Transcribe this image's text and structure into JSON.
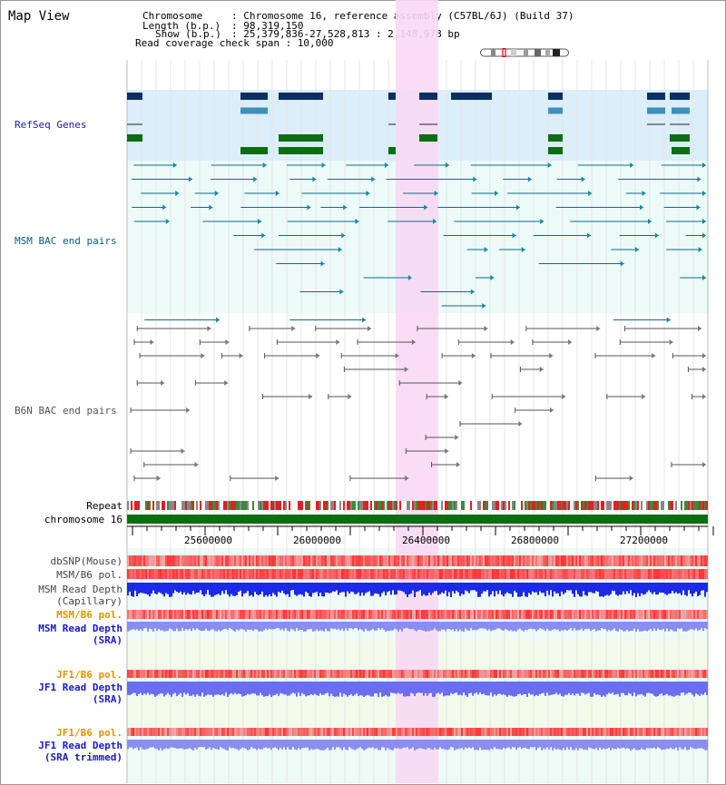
{
  "title": "Map View",
  "info": {
    "chromosome_key": "Chromosome",
    "chromosome_val": ": Chromosome 16, reference assembly (C57BL/6J) (Build 37)",
    "length_key": "Length (b.p.)",
    "length_val": ": 98,319,150",
    "show_key": "Show (b.p.)",
    "show_val": ": 25,379,836-27,528,813 : 2,148,978 bp",
    "coverage": "Read coverage check span : 10,000"
  },
  "track_labels": {
    "refseq": "RefSeq Genes",
    "msm_bac": "MSM BAC end pairs",
    "b6n_bac": "B6N BAC end pairs",
    "repeat": "Repeat",
    "chromosome": "chromosome 16",
    "dbsnp": "dbSNP(Mouse)",
    "msm_pol": "MSM/B6 pol.",
    "msm_depth_cap_1": "MSM Read Depth",
    "msm_depth_cap_2": "(Capillary)",
    "msm_pol_sra": "MSM/B6 pol.",
    "msm_depth_sra_1": "MSM Read Depth",
    "msm_depth_sra_2": "(SRA)",
    "jf1_pol": "JF1/B6 pol.",
    "jf1_depth_1": "JF1 Read Depth",
    "jf1_depth_2": "(SRA)",
    "jf1_pol_trim": "JF1/B6 pol.",
    "jf1_trim_1": "JF1 Read Depth",
    "jf1_trim_2": "(SRA trimmed)"
  },
  "axis_ticks": [
    "25600000",
    "26000000",
    "26400000",
    "26800000",
    "27200000"
  ],
  "colors": {
    "refseq_label": "#1a1aa8",
    "msm_label": "#0d5b85",
    "b6n_label": "#555555",
    "orange_label": "#e39400",
    "blue_label": "#1a1ac8",
    "highlight": "#f7d9f3"
  }
}
